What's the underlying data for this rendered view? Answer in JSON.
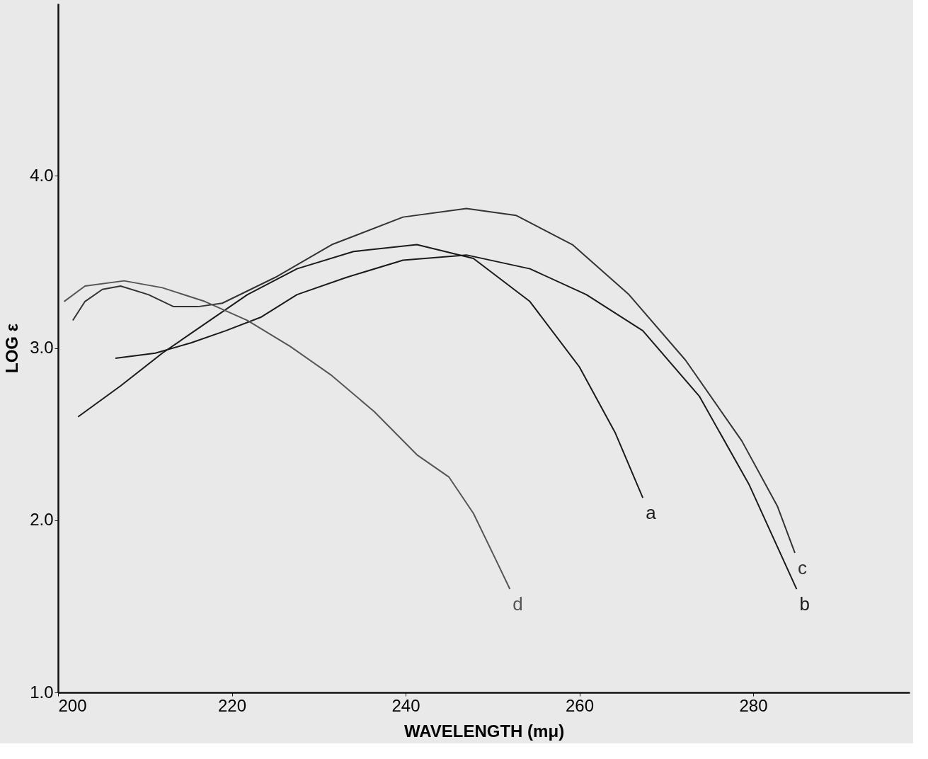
{
  "chart_data": {
    "type": "line",
    "xlabel": "WAVELENGTH (mμ)",
    "ylabel": "LOG ε",
    "xlim": [
      200,
      298
    ],
    "xticks": [
      200,
      220,
      240,
      260,
      280
    ],
    "ylim": [
      1.0,
      5.0
    ],
    "yticks": [
      {
        "value": 1,
        "label": "1.0"
      },
      {
        "value": 2,
        "label": "2.0"
      },
      {
        "value": 3,
        "label": "3.0"
      },
      {
        "value": 4,
        "label": "4.0"
      }
    ],
    "grid": false,
    "legend": false,
    "marker": "none",
    "line_style": "solid",
    "series": [
      {
        "name": "a",
        "color": "#1a1a1a",
        "x": [
          202.3,
          207.2,
          212,
          216.9,
          221.8,
          227.5,
          234,
          241.3,
          247.8,
          254.3,
          260,
          264.1,
          267.3
        ],
        "values": [
          2.6,
          2.78,
          2.97,
          3.14,
          3.31,
          3.46,
          3.56,
          3.6,
          3.52,
          3.27,
          2.89,
          2.51,
          2.13
        ]
      },
      {
        "name": "b",
        "color": "#1a1a1a",
        "x": [
          206.6,
          211.2,
          215.3,
          219.3,
          223.4,
          227.5,
          233.2,
          239.7,
          247,
          254.3,
          260.8,
          267.3,
          273.8,
          279.5,
          285
        ],
        "values": [
          2.94,
          2.97,
          3.03,
          3.1,
          3.18,
          3.31,
          3.41,
          3.51,
          3.54,
          3.46,
          3.31,
          3.1,
          2.72,
          2.21,
          1.6
        ]
      },
      {
        "name": "c",
        "color": "#333333",
        "x": [
          201.7,
          203.1,
          205.1,
          207.2,
          210.4,
          213.3,
          216.1,
          218.9,
          225,
          231.5,
          239.7,
          247,
          252.7,
          259.2,
          265.7,
          272.2,
          278.7,
          282.8,
          284.8
        ],
        "values": [
          3.16,
          3.27,
          3.34,
          3.36,
          3.31,
          3.24,
          3.24,
          3.26,
          3.41,
          3.6,
          3.76,
          3.81,
          3.77,
          3.6,
          3.31,
          2.93,
          2.46,
          2.08,
          1.81
        ]
      },
      {
        "name": "d",
        "color": "#555555",
        "x": [
          200.7,
          203.1,
          207.6,
          212,
          216.9,
          221.8,
          226.7,
          231.5,
          236.4,
          241.3,
          245,
          247.8,
          250.2,
          252
        ],
        "values": [
          3.27,
          3.36,
          3.39,
          3.35,
          3.27,
          3.16,
          3.01,
          2.84,
          2.63,
          2.38,
          2.25,
          2.04,
          1.79,
          1.6
        ]
      }
    ]
  }
}
